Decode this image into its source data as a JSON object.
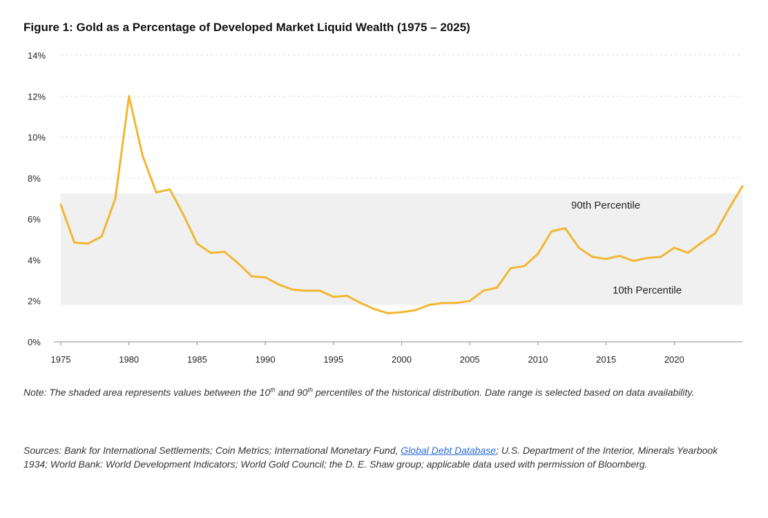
{
  "title": "Figure 1: Gold as a Percentage of Developed Market Liquid Wealth (1975 – 2025)",
  "chart_data": {
    "type": "line",
    "title": "Figure 1: Gold as a Percentage of Developed Market Liquid Wealth (1975 – 2025)",
    "xlabel": "",
    "ylabel": "",
    "xlim": [
      1975,
      2025
    ],
    "ylim": [
      0,
      14
    ],
    "x_ticks": [
      1975,
      1980,
      1985,
      1990,
      1995,
      2000,
      2005,
      2010,
      2015,
      2020
    ],
    "y_ticks": [
      0,
      2,
      4,
      6,
      8,
      10,
      12,
      14
    ],
    "y_tick_labels": [
      "0%",
      "2%",
      "4%",
      "6%",
      "8%",
      "10%",
      "12%",
      "14%"
    ],
    "grid": "horizontal dashed",
    "line_color": "#f2b632",
    "band": {
      "lower": 1.8,
      "upper": 7.25,
      "color": "#f0f0f0",
      "upper_label": "90th Percentile",
      "lower_label": "10th Percentile"
    },
    "series": [
      {
        "x": [
          1975,
          1976,
          1977,
          1978,
          1979,
          1980,
          1981,
          1982,
          1983,
          1984,
          1985,
          1986,
          1987,
          1988,
          1989,
          1990,
          1991,
          1992,
          1993,
          1994,
          1995,
          1996,
          1997,
          1998,
          1999,
          2000,
          2001,
          2002,
          2003,
          2004,
          2005,
          2006,
          2007,
          2008,
          2009,
          2010,
          2011,
          2012,
          2013,
          2014,
          2015,
          2016,
          2017,
          2018,
          2019,
          2020,
          2021,
          2022,
          2023,
          2024,
          2025
        ],
        "values": [
          6.7,
          4.85,
          4.8,
          5.15,
          7.0,
          12.0,
          9.1,
          7.3,
          7.45,
          6.2,
          4.8,
          4.35,
          4.4,
          3.85,
          3.2,
          3.15,
          2.8,
          2.55,
          2.5,
          2.5,
          2.2,
          2.25,
          1.9,
          1.6,
          1.4,
          1.45,
          1.55,
          1.8,
          1.9,
          1.9,
          2.0,
          2.5,
          2.65,
          3.6,
          3.7,
          4.3,
          5.4,
          5.55,
          4.6,
          4.15,
          4.05,
          4.2,
          3.95,
          4.1,
          4.15,
          4.6,
          4.35,
          4.85,
          5.3,
          6.5,
          7.6
        ]
      }
    ]
  },
  "note": {
    "prefix": "Note: The shaded area represents values between the 10",
    "sup1": "th",
    "mid": " and 90",
    "sup2": "th",
    "suffix": " percentiles of the historical distribution. Date range is selected based on data availability."
  },
  "sources": {
    "prefix": "Sources: Bank for International Settlements; Coin Metrics; International Monetary Fund, ",
    "link": "Global Debt Database",
    "suffix": "; U.S. Department of the Interior, Minerals Yearbook 1934; World Bank: World Development Indicators; World Gold Council; the D. E. Shaw group; applicable data used with permission of Bloomberg."
  }
}
